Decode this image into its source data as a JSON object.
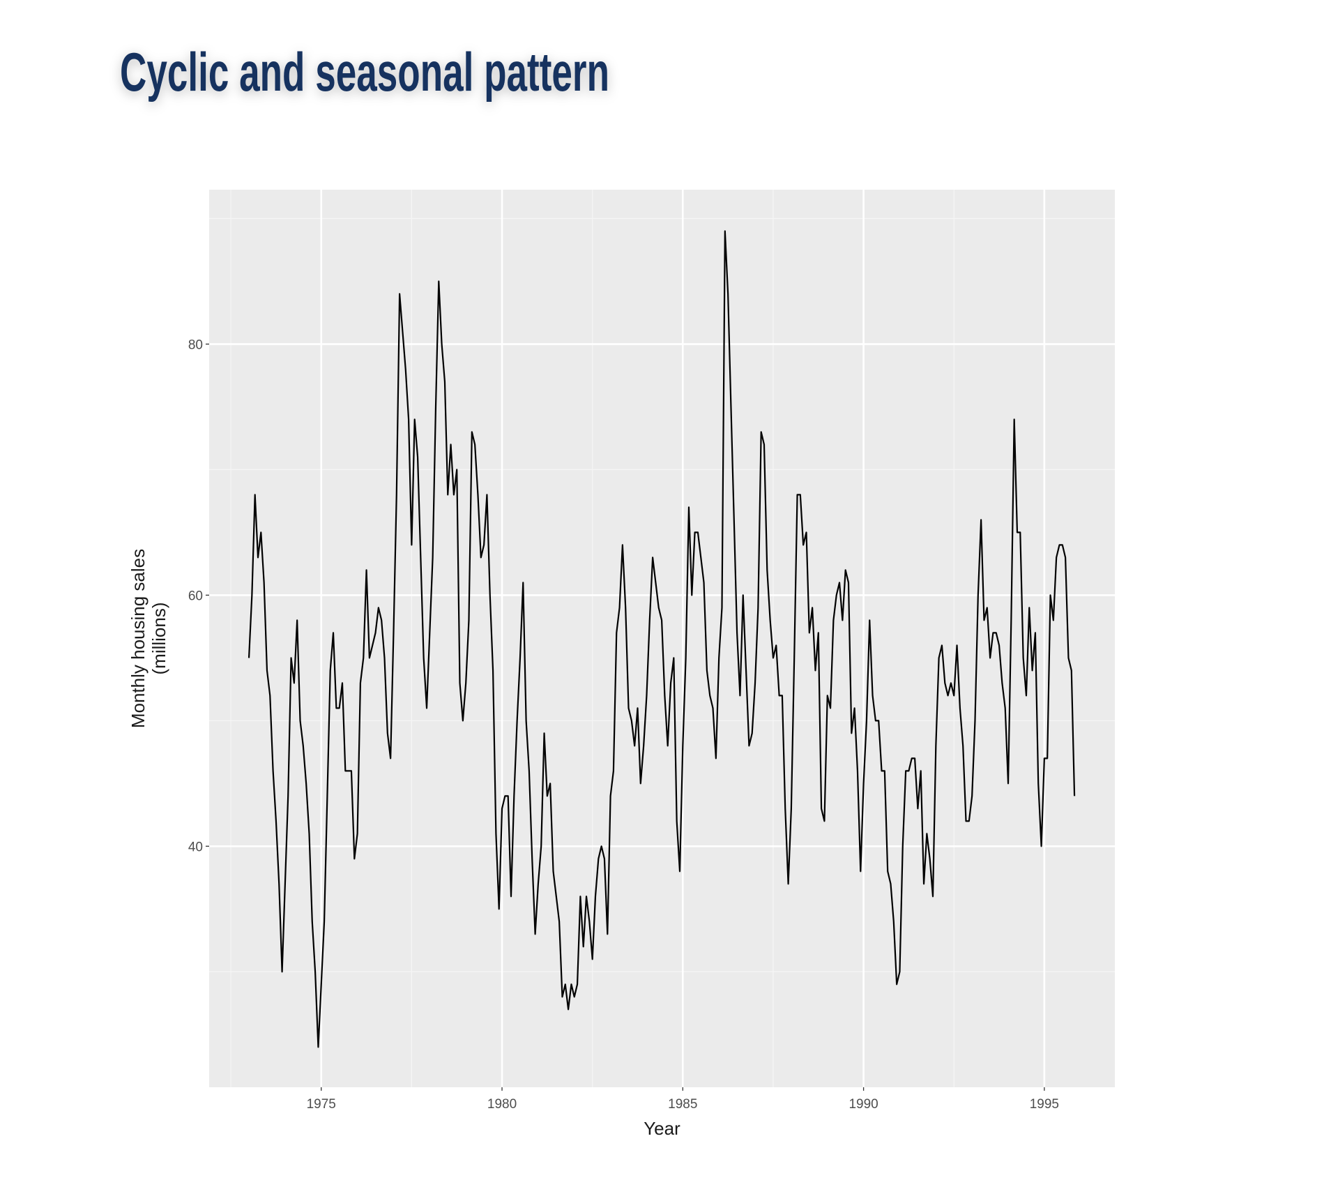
{
  "chart_data": {
    "type": "line",
    "title": "Cyclic and seasonal pattern",
    "x_label": "Year",
    "y_label": [
      "Monthly housing sales",
      "(millions)"
    ],
    "xlim": [
      1971.9,
      1996.95
    ],
    "ylim": [
      20.8,
      92.3
    ],
    "xticks": [
      1975,
      1980,
      1985,
      1990,
      1995
    ],
    "yticks": [
      40,
      60,
      80
    ],
    "x_minor_grid": [
      1972.5,
      1977.5,
      1982.5,
      1987.5,
      1992.5
    ],
    "y_minor_grid": [
      30,
      50,
      70,
      90
    ],
    "grid": true,
    "series": [
      {
        "color": "#000000",
        "x": [
          1973,
          1973.083,
          1973.167,
          1973.25,
          1973.333,
          1973.417,
          1973.5,
          1973.583,
          1973.667,
          1973.75,
          1973.833,
          1973.917,
          1974,
          1974.083,
          1974.167,
          1974.25,
          1974.333,
          1974.417,
          1974.5,
          1974.583,
          1974.667,
          1974.75,
          1974.833,
          1974.917,
          1975,
          1975.083,
          1975.167,
          1975.25,
          1975.333,
          1975.417,
          1975.5,
          1975.583,
          1975.667,
          1975.75,
          1975.833,
          1975.917,
          1976,
          1976.083,
          1976.167,
          1976.25,
          1976.333,
          1976.417,
          1976.5,
          1976.583,
          1976.667,
          1976.75,
          1976.833,
          1976.917,
          1977,
          1977.083,
          1977.167,
          1977.25,
          1977.333,
          1977.417,
          1977.5,
          1977.583,
          1977.667,
          1977.75,
          1977.833,
          1977.917,
          1978,
          1978.083,
          1978.167,
          1978.25,
          1978.333,
          1978.417,
          1978.5,
          1978.583,
          1978.667,
          1978.75,
          1978.833,
          1978.917,
          1979,
          1979.083,
          1979.167,
          1979.25,
          1979.333,
          1979.417,
          1979.5,
          1979.583,
          1979.667,
          1979.75,
          1979.833,
          1979.917,
          1980,
          1980.083,
          1980.167,
          1980.25,
          1980.333,
          1980.417,
          1980.5,
          1980.583,
          1980.667,
          1980.75,
          1980.833,
          1980.917,
          1981,
          1981.083,
          1981.167,
          1981.25,
          1981.333,
          1981.417,
          1981.5,
          1981.583,
          1981.667,
          1981.75,
          1981.833,
          1981.917,
          1982,
          1982.083,
          1982.167,
          1982.25,
          1982.333,
          1982.417,
          1982.5,
          1982.583,
          1982.667,
          1982.75,
          1982.833,
          1982.917,
          1983,
          1983.083,
          1983.167,
          1983.25,
          1983.333,
          1983.417,
          1983.5,
          1983.583,
          1983.667,
          1983.75,
          1983.833,
          1983.917,
          1984,
          1984.083,
          1984.167,
          1984.25,
          1984.333,
          1984.417,
          1984.5,
          1984.583,
          1984.667,
          1984.75,
          1984.833,
          1984.917,
          1985,
          1985.083,
          1985.167,
          1985.25,
          1985.333,
          1985.417,
          1985.5,
          1985.583,
          1985.667,
          1985.75,
          1985.833,
          1985.917,
          1986,
          1986.083,
          1986.167,
          1986.25,
          1986.333,
          1986.417,
          1986.5,
          1986.583,
          1986.667,
          1986.75,
          1986.833,
          1986.917,
          1987,
          1987.083,
          1987.167,
          1987.25,
          1987.333,
          1987.417,
          1987.5,
          1987.583,
          1987.667,
          1987.75,
          1987.833,
          1987.917,
          1988,
          1988.083,
          1988.167,
          1988.25,
          1988.333,
          1988.417,
          1988.5,
          1988.583,
          1988.667,
          1988.75,
          1988.833,
          1988.917,
          1989,
          1989.083,
          1989.167,
          1989.25,
          1989.333,
          1989.417,
          1989.5,
          1989.583,
          1989.667,
          1989.75,
          1989.833,
          1989.917,
          1990,
          1990.083,
          1990.167,
          1990.25,
          1990.333,
          1990.417,
          1990.5,
          1990.583,
          1990.667,
          1990.75,
          1990.833,
          1990.917,
          1991,
          1991.083,
          1991.167,
          1991.25,
          1991.333,
          1991.417,
          1991.5,
          1991.583,
          1991.667,
          1991.75,
          1991.833,
          1991.917,
          1992,
          1992.083,
          1992.167,
          1992.25,
          1992.333,
          1992.417,
          1992.5,
          1992.583,
          1992.667,
          1992.75,
          1992.833,
          1992.917,
          1993,
          1993.083,
          1993.167,
          1993.25,
          1993.333,
          1993.417,
          1993.5,
          1993.583,
          1993.667,
          1993.75,
          1993.833,
          1993.917,
          1994,
          1994.083,
          1994.167,
          1994.25,
          1994.333,
          1994.417,
          1994.5,
          1994.583,
          1994.667,
          1994.75,
          1994.833,
          1994.917,
          1995,
          1995.083,
          1995.167,
          1995.25,
          1995.333,
          1995.417,
          1995.5,
          1995.583,
          1995.667,
          1995.75,
          1995.833
        ],
        "values": [
          55,
          60,
          68,
          63,
          65,
          61,
          54,
          52,
          46,
          42,
          37,
          30,
          37,
          44,
          55,
          53,
          58,
          50,
          48,
          45,
          41,
          34,
          30,
          24,
          29,
          34,
          44,
          54,
          57,
          51,
          51,
          53,
          46,
          46,
          46,
          39,
          41,
          53,
          55,
          62,
          55,
          56,
          57,
          59,
          58,
          55,
          49,
          47,
          57,
          68,
          84,
          81,
          78,
          74,
          64,
          74,
          71,
          63,
          55,
          51,
          57,
          63,
          75,
          85,
          80,
          77,
          68,
          72,
          68,
          70,
          53,
          50,
          53,
          58,
          73,
          72,
          68,
          63,
          64,
          68,
          60,
          54,
          41,
          35,
          43,
          44,
          44,
          36,
          44,
          50,
          55,
          61,
          50,
          46,
          39,
          33,
          37,
          40,
          49,
          44,
          45,
          38,
          36,
          34,
          28,
          29,
          27,
          29,
          28,
          29,
          36,
          32,
          36,
          34,
          31,
          36,
          39,
          40,
          39,
          33,
          44,
          46,
          57,
          59,
          64,
          59,
          51,
          50,
          48,
          51,
          45,
          48,
          52,
          58,
          63,
          61,
          59,
          58,
          52,
          48,
          53,
          55,
          42,
          38,
          48,
          55,
          67,
          60,
          65,
          65,
          63,
          61,
          54,
          52,
          51,
          47,
          55,
          59,
          89,
          84,
          75,
          66,
          57,
          52,
          60,
          54,
          48,
          49,
          53,
          59,
          73,
          72,
          62,
          58,
          55,
          56,
          52,
          52,
          43,
          37,
          43,
          55,
          68,
          68,
          64,
          65,
          57,
          59,
          54,
          57,
          43,
          42,
          52,
          51,
          58,
          60,
          61,
          58,
          62,
          61,
          49,
          51,
          46,
          38,
          45,
          50,
          58,
          52,
          50,
          50,
          46,
          46,
          38,
          37,
          34,
          29,
          30,
          40,
          46,
          46,
          47,
          47,
          43,
          46,
          37,
          41,
          39,
          36,
          48,
          55,
          56,
          53,
          52,
          53,
          52,
          56,
          51,
          48,
          42,
          42,
          44,
          50,
          60,
          66,
          58,
          59,
          55,
          57,
          57,
          56,
          53,
          51,
          45,
          58,
          74,
          65,
          65,
          55,
          52,
          59,
          54,
          57,
          45,
          40,
          47,
          47,
          60,
          58,
          63,
          64,
          64,
          63,
          55,
          54,
          44
        ]
      }
    ]
  }
}
